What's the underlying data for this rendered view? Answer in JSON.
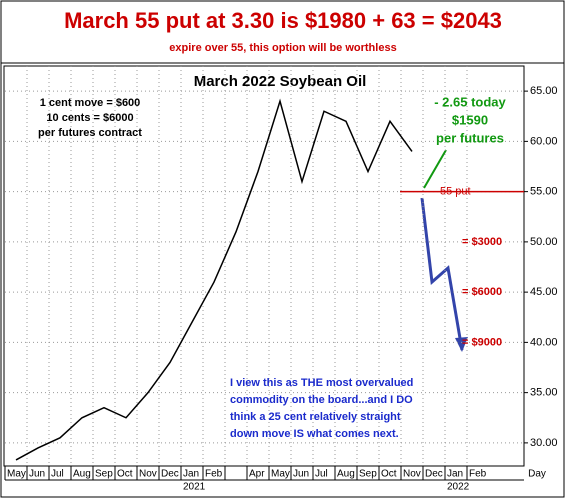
{
  "chart_data": {
    "type": "line",
    "title": "March 55 put at 3.30 is $1980 + 63 = $2043",
    "subtitle": "expire over 55, this option will be worthless",
    "chart_title": "March 2022 Soybean Oil",
    "categories": [
      "May",
      "Jun",
      "Jul",
      "Aug",
      "Sep",
      "Oct",
      "Nov",
      "Dec",
      "Jan",
      "Feb",
      null,
      "Apr",
      "May",
      "Jun",
      "Jul",
      "Aug",
      "Sep",
      "Oct",
      "Nov",
      "Dec",
      "Jan",
      "Feb"
    ],
    "years": [
      "2021",
      "2022"
    ],
    "x_unit_label": "Day",
    "series": [
      {
        "color": "#000000",
        "values": [
          28.3,
          29.5,
          30.5,
          32.5,
          33.5,
          32.5,
          35,
          38,
          42,
          46,
          51,
          57,
          64,
          56,
          63,
          62,
          57,
          62,
          59,
          null,
          null,
          null
        ]
      }
    ],
    "ylim": [
      27.7,
      67.5
    ],
    "yticks": [
      {
        "value": 30,
        "label": "30.00"
      },
      {
        "value": 35,
        "label": "35.00"
      },
      {
        "value": 40,
        "label": "40.00"
      },
      {
        "value": 45,
        "label": "45.00"
      },
      {
        "value": 50,
        "label": "50.00"
      },
      {
        "value": 55,
        "label": "55.00"
      },
      {
        "value": 60,
        "label": "60.00"
      },
      {
        "value": 65,
        "label": "65.00"
      }
    ],
    "grid": true,
    "put_line": {
      "label": "55 put",
      "price": 55,
      "color": "#cc0000"
    },
    "levels": [
      {
        "label": "= $3000",
        "price": 50
      },
      {
        "label": "= $6000",
        "price": 45
      },
      {
        "label": "= $9000",
        "price": 40
      }
    ],
    "notes_left": [
      "1 cent move = $600",
      "10 cents = $6000",
      "per futures contract"
    ],
    "notes_today": [
      "- 2.65 today",
      "$1590",
      "per futures"
    ],
    "notes_view": [
      "I view this as THE most overvalued",
      "commodity on the board...and I DO",
      "think a 25 cent relatively straight",
      "down move IS what comes next."
    ]
  }
}
